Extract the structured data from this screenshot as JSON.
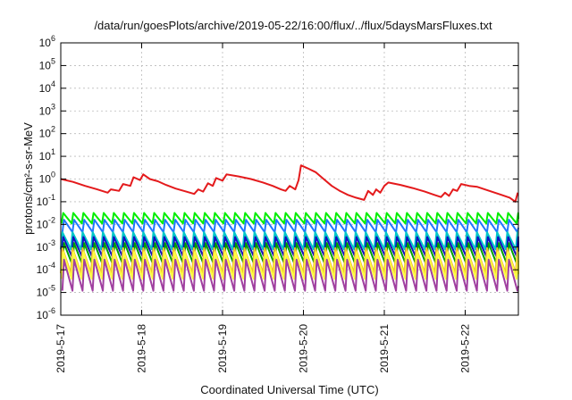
{
  "chart_data": {
    "type": "line",
    "title": "/data/run/goesPlots/archive/2019-05-22/16:00/flux/../flux/5daysMarsFluxes.txt",
    "xlabel": "Coordinated Universal Time (UTC)",
    "ylabel": "protons/cm²-s-sr-MeV",
    "yscale": "log",
    "ylim": [
      1e-06,
      1000000.0
    ],
    "xlim": [
      "2019-05-17 00:00",
      "2019-05-22 16:00"
    ],
    "grid": true,
    "legend": "none",
    "y_ticks": [
      {
        "value": 1e-06,
        "base": "10",
        "exp": "-6"
      },
      {
        "value": 1e-05,
        "base": "10",
        "exp": "-5"
      },
      {
        "value": 0.0001,
        "base": "10",
        "exp": "-4"
      },
      {
        "value": 0.001,
        "base": "10",
        "exp": "-3"
      },
      {
        "value": 0.01,
        "base": "10",
        "exp": "-2"
      },
      {
        "value": 0.1,
        "base": "10",
        "exp": "-1"
      },
      {
        "value": 1.0,
        "base": "10",
        "exp": "0"
      },
      {
        "value": 10.0,
        "base": "10",
        "exp": "1"
      },
      {
        "value": 100.0,
        "base": "10",
        "exp": "2"
      },
      {
        "value": 1000.0,
        "base": "10",
        "exp": "3"
      },
      {
        "value": 10000.0,
        "base": "10",
        "exp": "4"
      },
      {
        "value": 100000.0,
        "base": "10",
        "exp": "5"
      },
      {
        "value": 1000000.0,
        "base": "10",
        "exp": "6"
      }
    ],
    "x_ticks": [
      {
        "day": 0,
        "label": "2019-5-17"
      },
      {
        "day": 1,
        "label": "2019-5-18"
      },
      {
        "day": 2,
        "label": "2019-5-19"
      },
      {
        "day": 3,
        "label": "2019-5-20"
      },
      {
        "day": 4,
        "label": "2019-5-21"
      },
      {
        "day": 5,
        "label": "2019-5-22"
      }
    ],
    "series": [
      {
        "color": "#e41a1c",
        "sawtooth": false,
        "points": [
          [
            0,
            1.0
          ],
          [
            0.15,
            0.75
          ],
          [
            0.3,
            0.5
          ],
          [
            0.45,
            0.35
          ],
          [
            0.58,
            0.25
          ],
          [
            0.62,
            0.35
          ],
          [
            0.72,
            0.3
          ],
          [
            0.77,
            0.6
          ],
          [
            0.86,
            0.5
          ],
          [
            0.9,
            1.2
          ],
          [
            0.98,
            0.9
          ],
          [
            1.02,
            1.6
          ],
          [
            1.1,
            1.0
          ],
          [
            1.2,
            0.8
          ],
          [
            1.3,
            0.55
          ],
          [
            1.42,
            0.38
          ],
          [
            1.55,
            0.28
          ],
          [
            1.65,
            0.22
          ],
          [
            1.7,
            0.35
          ],
          [
            1.76,
            0.28
          ],
          [
            1.82,
            0.65
          ],
          [
            1.88,
            0.5
          ],
          [
            1.92,
            1.1
          ],
          [
            2.0,
            0.85
          ],
          [
            2.05,
            1.6
          ],
          [
            2.2,
            1.3
          ],
          [
            2.35,
            1.0
          ],
          [
            2.5,
            0.7
          ],
          [
            2.62,
            0.5
          ],
          [
            2.72,
            0.35
          ],
          [
            2.78,
            0.3
          ],
          [
            2.83,
            0.5
          ],
          [
            2.9,
            0.35
          ],
          [
            2.94,
            0.9
          ],
          [
            2.97,
            4.0
          ],
          [
            3.05,
            3.0
          ],
          [
            3.15,
            2.0
          ],
          [
            3.25,
            1.0
          ],
          [
            3.35,
            0.5
          ],
          [
            3.45,
            0.3
          ],
          [
            3.55,
            0.2
          ],
          [
            3.65,
            0.15
          ],
          [
            3.75,
            0.12
          ],
          [
            3.8,
            0.3
          ],
          [
            3.86,
            0.2
          ],
          [
            3.9,
            0.35
          ],
          [
            3.95,
            0.25
          ],
          [
            4.0,
            0.5
          ],
          [
            4.05,
            0.7
          ],
          [
            4.2,
            0.55
          ],
          [
            4.35,
            0.4
          ],
          [
            4.5,
            0.28
          ],
          [
            4.62,
            0.2
          ],
          [
            4.7,
            0.16
          ],
          [
            4.75,
            0.25
          ],
          [
            4.8,
            0.18
          ],
          [
            4.85,
            0.35
          ],
          [
            4.9,
            0.3
          ],
          [
            4.95,
            0.6
          ],
          [
            5.05,
            0.5
          ],
          [
            5.15,
            0.45
          ],
          [
            5.3,
            0.3
          ],
          [
            5.45,
            0.2
          ],
          [
            5.55,
            0.15
          ],
          [
            5.62,
            0.1
          ],
          [
            5.65,
            0.25
          ],
          [
            5.7,
            0.3
          ],
          [
            5.73,
            0.16
          ],
          [
            5.78,
            0.4
          ],
          [
            5.83,
            0.35
          ]
        ]
      },
      {
        "color": "#00ee00",
        "sawtooth": true,
        "hi": 0.032,
        "lo": 0.011
      },
      {
        "color": "#1f78ff",
        "sawtooth": true,
        "hi": 0.016,
        "lo": 0.0045
      },
      {
        "color": "#00c8c8",
        "sawtooth": true,
        "hi": 0.0045,
        "lo": 0.0008
      },
      {
        "color": "#1010c0",
        "sawtooth": true,
        "hi": 0.0028,
        "lo": 0.0004
      },
      {
        "color": "#00a000",
        "sawtooth": true,
        "hi": 0.0015,
        "lo": 0.00016
      },
      {
        "color": "#f0c030",
        "sawtooth": true,
        "hi": 0.0009,
        "lo": 7e-05
      },
      {
        "color": "#ffff40",
        "sawtooth": true,
        "hi": 0.0006,
        "lo": 4e-05
      },
      {
        "color": "#a040a0",
        "sawtooth": true,
        "hi": 0.00028,
        "lo": 1.2e-05
      }
    ]
  }
}
